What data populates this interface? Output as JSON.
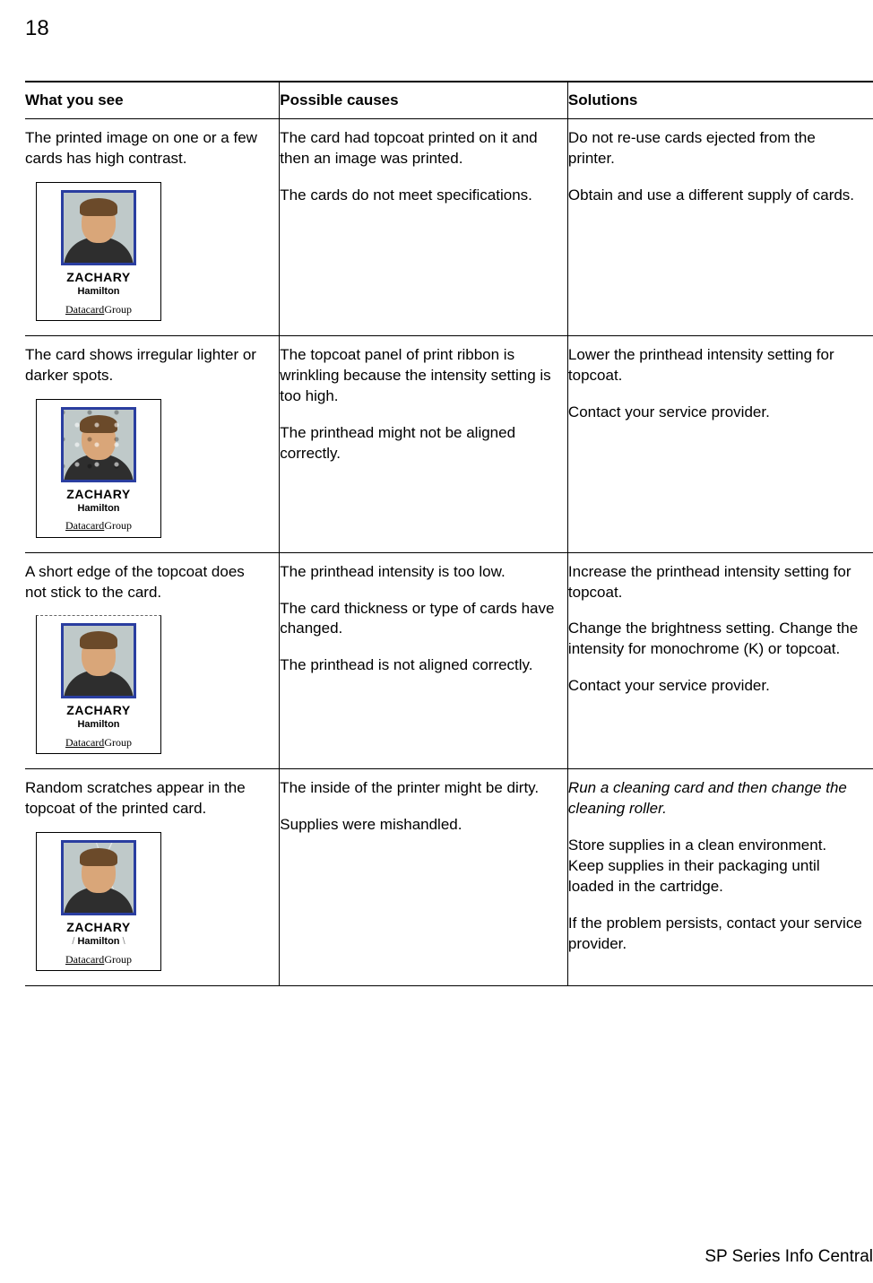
{
  "page_number": "18",
  "footer": "SP Series Info Central",
  "card": {
    "first_name": "ZACHARY",
    "last_name": "Hamilton",
    "brand_prefix": "Datacard",
    "brand_suffix": "Group"
  },
  "table": {
    "headers": {
      "col1": "What you see",
      "col2": "Possible causes",
      "col3": "Solutions"
    },
    "rows": [
      {
        "see": "The printed image on one or a few  cards has high contrast.",
        "causes": [
          "The card had topcoat printed on it and then an image was printed.",
          "The cards  do not meet specifications."
        ],
        "solutions": [
          {
            "text": "Do not re-use cards ejected from the printer.",
            "italic": false
          },
          {
            "text": "Obtain and use a different supply of cards.",
            "italic": false
          }
        ],
        "variant": ""
      },
      {
        "see": "The card shows irregular lighter or darker spots.",
        "causes": [
          "The topcoat panel of print ribbon is wrinkling because the intensity setting is too high.",
          "The printhead might not be aligned correctly."
        ],
        "solutions": [
          {
            "text": "Lower the printhead intensity setting for topcoat.",
            "italic": false
          },
          {
            "text": "Contact your service provider.",
            "italic": false
          }
        ],
        "variant": "spots"
      },
      {
        "see": "A short edge of the topcoat does not stick to the card.",
        "causes": [
          "The printhead intensity is too low.",
          "The card thickness or type of cards have changed.",
          "The printhead is not aligned correctly."
        ],
        "solutions": [
          {
            "text": "Increase the printhead intensity setting for topcoat.",
            "italic": false
          },
          {
            "text": "Change the brightness setting. Change the intensity for monochrome (K) or topcoat.",
            "italic": false
          },
          {
            "text": "Contact your service provider.",
            "italic": false
          }
        ],
        "variant": "edge"
      },
      {
        "see": "Random scratches appear in the topcoat of the printed card.",
        "causes": [
          "The inside of the printer might be dirty.",
          "Supplies were mishandled."
        ],
        "solutions": [
          {
            "text": "Run a cleaning card and then change the cleaning roller.",
            "italic": true
          },
          {
            "text": "Store supplies in a clean environment. Keep supplies in their packaging until loaded in the cartridge.",
            "italic": false
          },
          {
            "text": "If the problem persists, contact your service provider.",
            "italic": false
          }
        ],
        "variant": "scratches"
      }
    ]
  }
}
